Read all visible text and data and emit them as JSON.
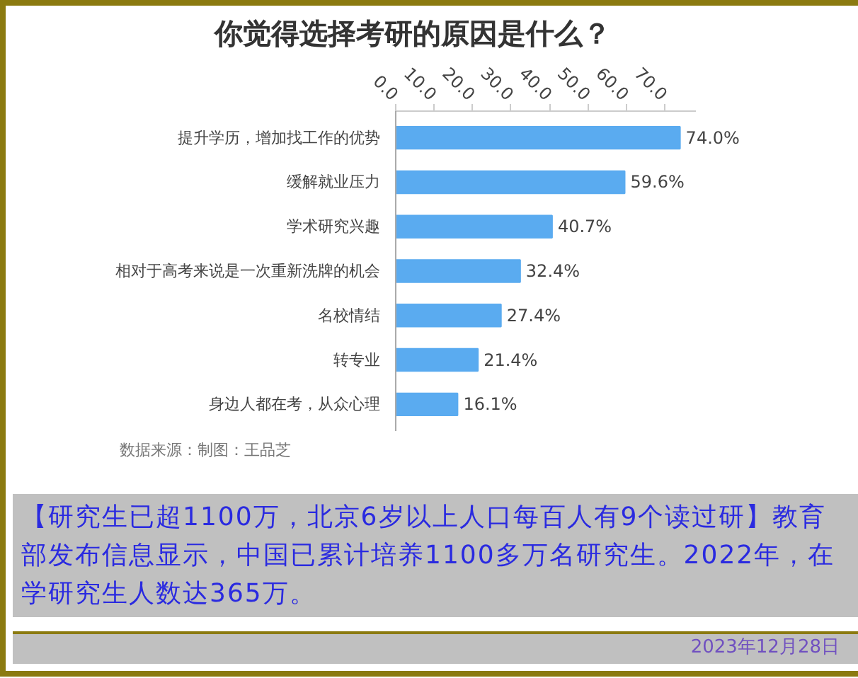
{
  "chart_data": {
    "type": "bar",
    "orientation": "horizontal",
    "title": "你觉得选择考研的原因是什么？",
    "categories": [
      "提升学历，增加找工作的优势",
      "缓解就业压力",
      "学术研究兴趣",
      "相对于高考来说是一次重新洗牌的机会",
      "名校情结",
      "转专业",
      "身边人都在考，从众心理"
    ],
    "values": [
      74.0,
      59.6,
      40.7,
      32.4,
      27.4,
      21.4,
      16.1
    ],
    "value_labels": [
      "74.0%",
      "59.6%",
      "40.7%",
      "32.4%",
      "27.4%",
      "21.4%",
      "16.1%"
    ],
    "color": "#5aabf0",
    "xlim": [
      0,
      78
    ],
    "xticks": [
      {
        "value": 0,
        "label": "0.0"
      },
      {
        "value": 10,
        "label": "10.0"
      },
      {
        "value": 20,
        "label": "20.0"
      },
      {
        "value": 30,
        "label": "30.0"
      },
      {
        "value": 40,
        "label": "40.0"
      },
      {
        "value": 50,
        "label": "50.0"
      },
      {
        "value": 60,
        "label": "60.0"
      },
      {
        "value": 70,
        "label": "70.0"
      }
    ],
    "grid": false,
    "annotations": [
      "数据来源：制图：王品芝",
      "【研究生已超1100万，北京6岁以上人口每百人有9个读过研】教育部发布信息显示，中国已累计培养1100多万名研究生。2022年，在学研究生人数达365万。",
      "2023年12月28日"
    ]
  }
}
